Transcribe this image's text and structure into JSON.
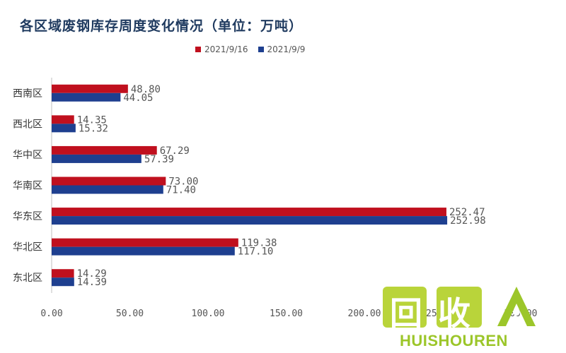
{
  "chart_data": {
    "type": "bar",
    "orientation": "horizontal",
    "title": "各区域废钢库存周度变化情况（单位：万吨）",
    "categories": [
      "西南区",
      "西北区",
      "华中区",
      "华南区",
      "华东区",
      "华北区",
      "东北区"
    ],
    "series": [
      {
        "name": "2021/9/16",
        "color": "#c0101e",
        "values": [
          48.8,
          14.35,
          67.29,
          73.0,
          252.47,
          119.38,
          14.29
        ]
      },
      {
        "name": "2021/9/9",
        "color": "#1e3f8f",
        "values": [
          44.05,
          15.32,
          57.39,
          71.4,
          252.98,
          117.1,
          14.39
        ]
      }
    ],
    "xlim": [
      0,
      300
    ],
    "x_ticks": [
      "0.00",
      "50.00",
      "100.00",
      "150.00",
      "200.00",
      "250.00",
      "300.00"
    ],
    "legend_position": "top-center",
    "grid": false
  },
  "watermark": {
    "chinese": "回收",
    "english": "HUISHOUREN",
    "color": "#9cc62a"
  }
}
